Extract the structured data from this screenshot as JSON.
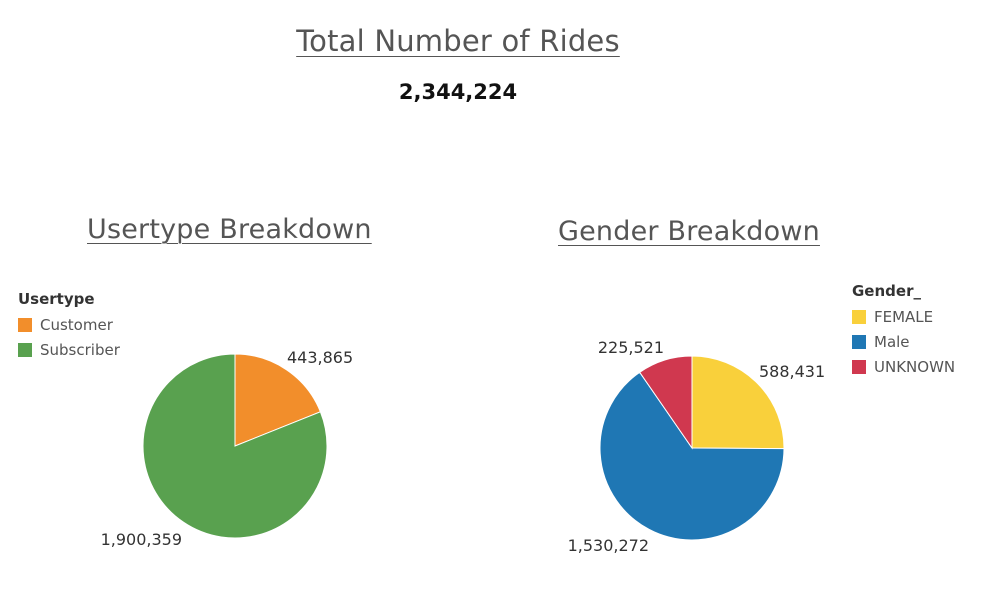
{
  "header": {
    "title": "Total Number of Rides",
    "total": "2,344,224"
  },
  "chart_data": [
    {
      "type": "pie",
      "title": "Usertype Breakdown",
      "legend_title": "Usertype",
      "legend_position": "top-left",
      "slices": [
        {
          "label": "Customer",
          "value": 443865,
          "display": "443,865",
          "color": "#F28E2B"
        },
        {
          "label": "Subscriber",
          "value": 1900359,
          "display": "1,900,359",
          "color": "#59A14F"
        }
      ]
    },
    {
      "type": "pie",
      "title": "Gender Breakdown",
      "legend_title": "Gender_",
      "legend_position": "top-right",
      "slices": [
        {
          "label": "FEMALE",
          "value": 588431,
          "display": "588,431",
          "color": "#F9D03B"
        },
        {
          "label": "Male",
          "value": 1530272,
          "display": "1,530,272",
          "color": "#1F77B4"
        },
        {
          "label": "UNKNOWN",
          "value": 225521,
          "display": "225,521",
          "color": "#D0384F"
        }
      ]
    }
  ]
}
